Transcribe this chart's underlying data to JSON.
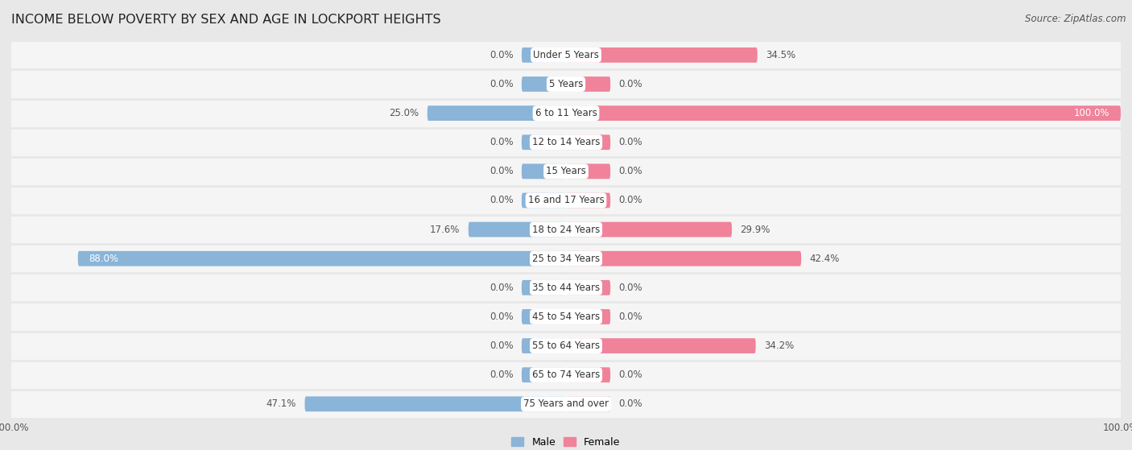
{
  "title": "INCOME BELOW POVERTY BY SEX AND AGE IN LOCKPORT HEIGHTS",
  "source": "Source: ZipAtlas.com",
  "categories": [
    "Under 5 Years",
    "5 Years",
    "6 to 11 Years",
    "12 to 14 Years",
    "15 Years",
    "16 and 17 Years",
    "18 to 24 Years",
    "25 to 34 Years",
    "35 to 44 Years",
    "45 to 54 Years",
    "55 to 64 Years",
    "65 to 74 Years",
    "75 Years and over"
  ],
  "male": [
    0.0,
    0.0,
    25.0,
    0.0,
    0.0,
    0.0,
    17.6,
    88.0,
    0.0,
    0.0,
    0.0,
    0.0,
    47.1
  ],
  "female": [
    34.5,
    0.0,
    100.0,
    0.0,
    0.0,
    0.0,
    29.9,
    42.4,
    0.0,
    0.0,
    34.2,
    0.0,
    0.0
  ],
  "male_color": "#8ab4d8",
  "female_color": "#f0829a",
  "male_label": "Male",
  "female_label": "Female",
  "background_color": "#e8e8e8",
  "row_bg_color": "#f5f5f5",
  "row_alt_bg_color": "#ebebeb",
  "axis_limit": 100.0,
  "bar_height": 0.52,
  "min_bar": 8.0,
  "title_fontsize": 11.5,
  "label_fontsize": 8.5,
  "tick_fontsize": 8.5,
  "source_fontsize": 8.5,
  "category_fontsize": 8.5
}
